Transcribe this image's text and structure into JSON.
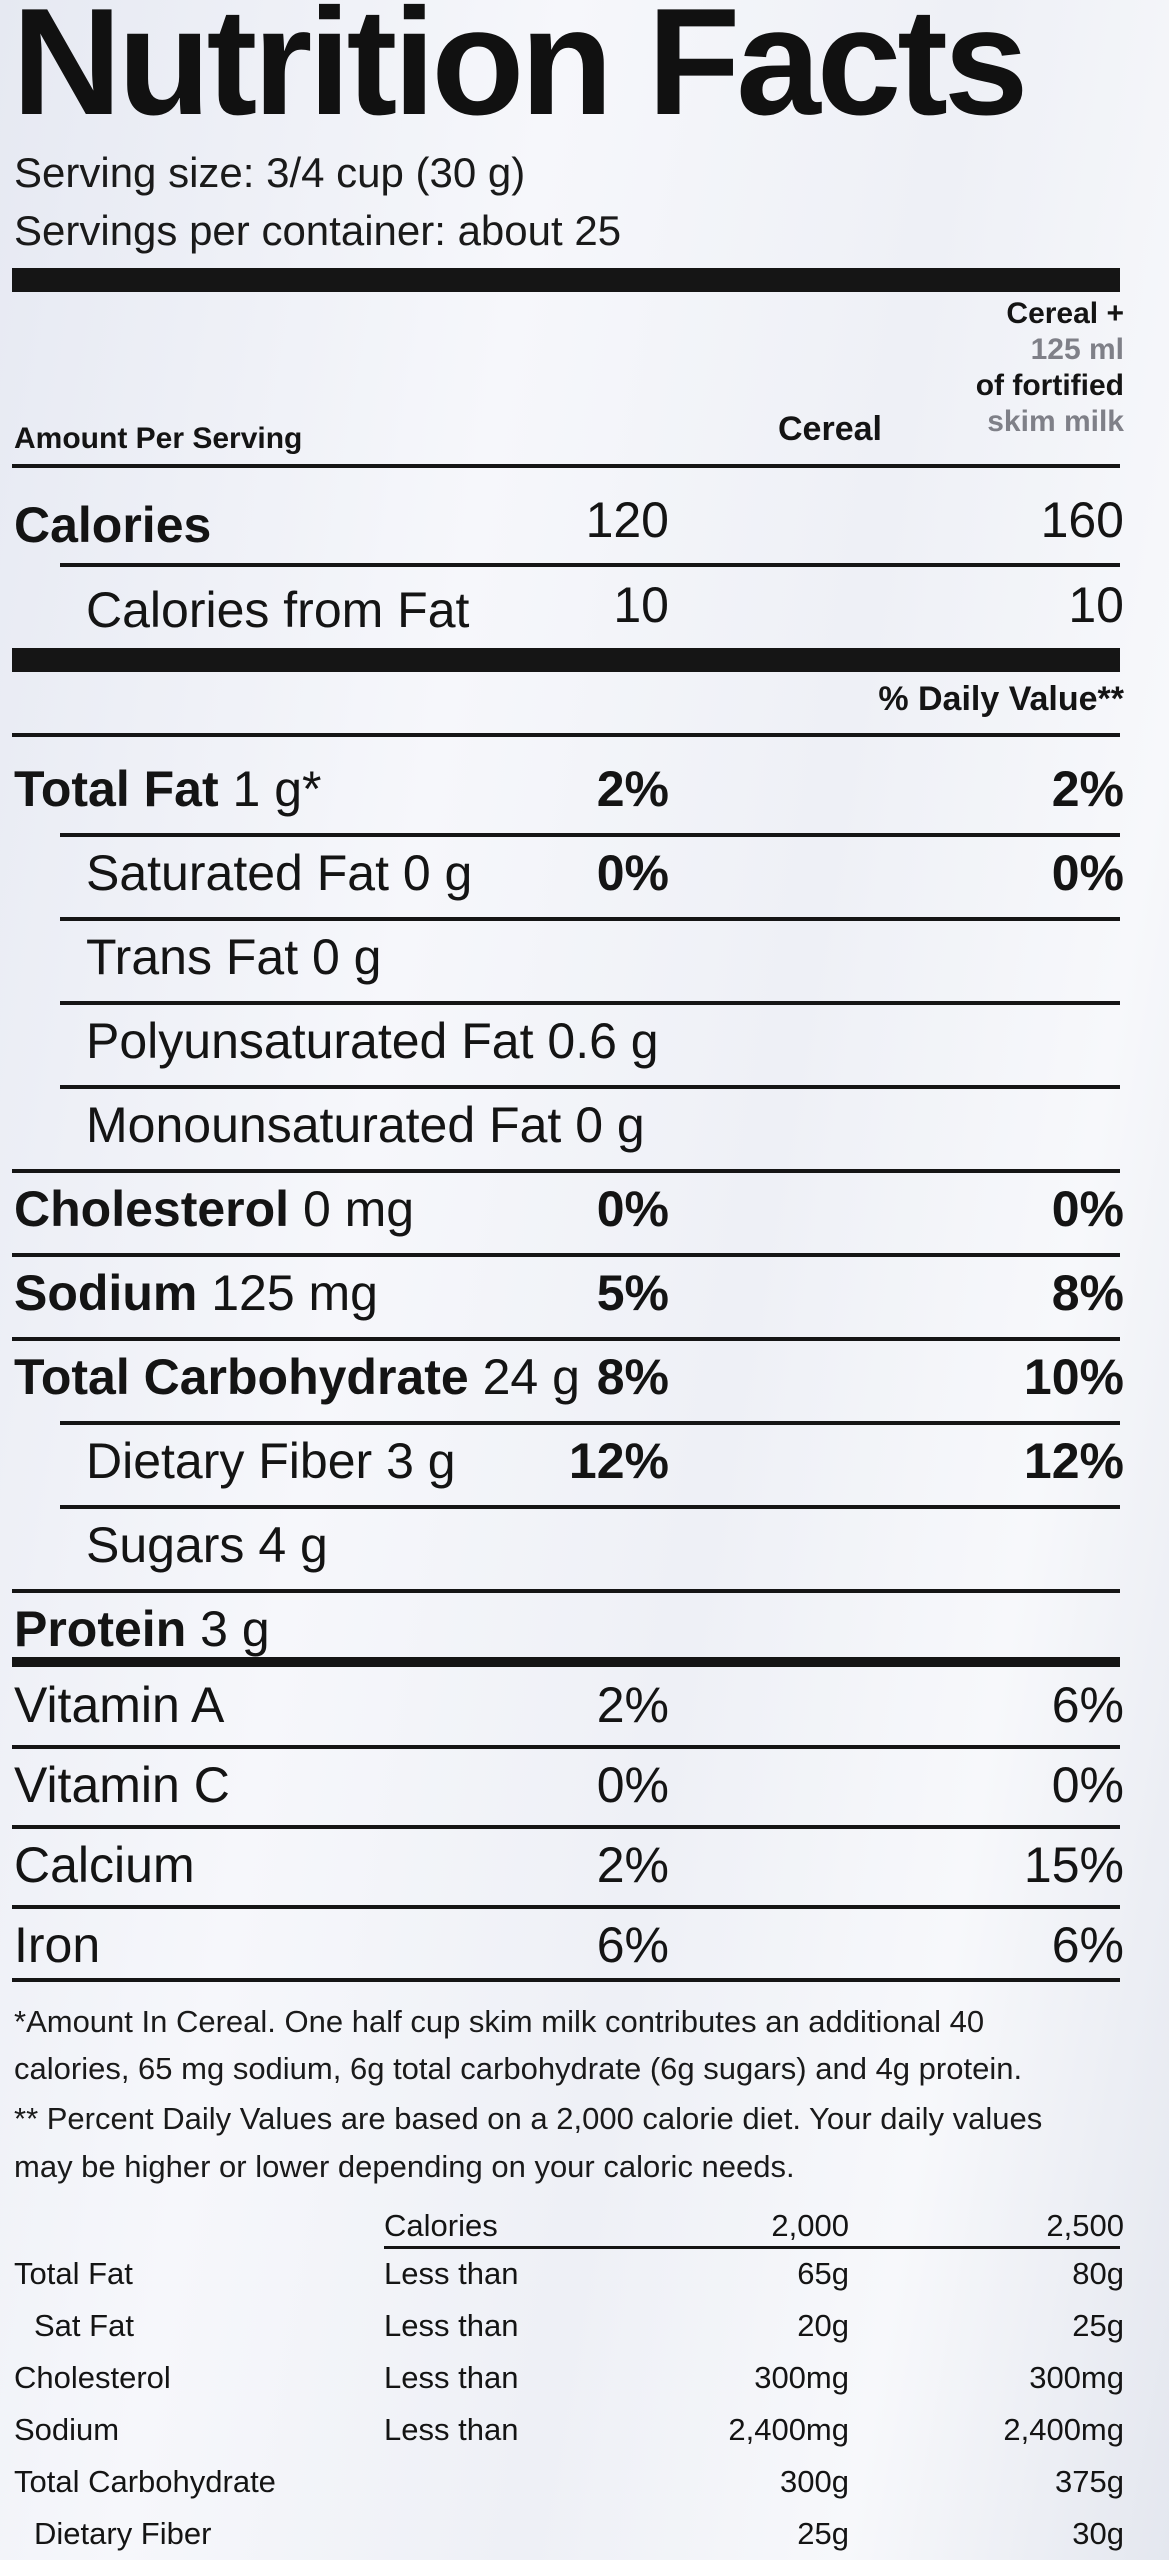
{
  "title": "Nutrition Facts",
  "serving_size": "Serving size: 3/4 cup (30 g)",
  "servings_per_container": "Servings per container: about 25",
  "header": {
    "amount_per_serving": "Amount Per Serving",
    "col1": "Cereal",
    "col2_line1": "Cereal +",
    "col2_line2": "125 ml",
    "col2_line3": "of fortified",
    "col2_line4": "skim milk"
  },
  "calories": {
    "label": "Calories",
    "cereal": "120",
    "with_milk": "160"
  },
  "calories_from_fat": {
    "label": "Calories from Fat",
    "cereal": "10",
    "with_milk": "10"
  },
  "daily_value_header": "% Daily Value**",
  "nutrients": [
    {
      "name": "Total Fat",
      "amount": " 1 g*",
      "cereal": "2%",
      "with_milk": "2%"
    },
    {
      "name": "Saturated Fat",
      "amount": " 0 g",
      "cereal": "0%",
      "with_milk": "0%"
    },
    {
      "name": "Trans Fat",
      "amount": " 0 g",
      "cereal": "",
      "with_milk": ""
    },
    {
      "name": "Polyunsaturated Fat",
      "amount": " 0.6 g",
      "cereal": "",
      "with_milk": ""
    },
    {
      "name": "Monounsaturated Fat",
      "amount": " 0 g",
      "cereal": "",
      "with_milk": ""
    },
    {
      "name": "Cholesterol",
      "amount": " 0 mg",
      "cereal": "0%",
      "with_milk": "0%"
    },
    {
      "name": "Sodium",
      "amount": " 125 mg",
      "cereal": "5%",
      "with_milk": "8%"
    },
    {
      "name": "Total Carbohydrate",
      "amount": " 24 g",
      "cereal": "8%",
      "with_milk": "10%"
    },
    {
      "name": "Dietary Fiber",
      "amount": " 3 g",
      "cereal": "12%",
      "with_milk": "12%"
    },
    {
      "name": "Sugars",
      "amount": " 4 g",
      "cereal": "",
      "with_milk": ""
    },
    {
      "name": "Protein",
      "amount": " 3 g",
      "cereal": "",
      "with_milk": ""
    }
  ],
  "vitamins": [
    {
      "name": "Vitamin A",
      "cereal": "2%",
      "with_milk": "6%"
    },
    {
      "name": "Vitamin C",
      "cereal": "0%",
      "with_milk": "0%"
    },
    {
      "name": "Calcium",
      "cereal": "2%",
      "with_milk": "15%"
    },
    {
      "name": "Iron",
      "cereal": "6%",
      "with_milk": "6%"
    }
  ],
  "footnotes": [
    "*Amount In Cereal. One half cup skim milk contributes an additional 40",
    "calories, 65 mg sodium, 6g total carbohydrate (6g sugars) and 4g protein.",
    "** Percent Daily Values are based on a 2,000 calorie diet. Your daily values",
    "may be higher or lower depending on your caloric needs."
  ],
  "dv_table": {
    "header": {
      "label": "Calories",
      "c1": "2,000",
      "c2": "2,500"
    },
    "rows": [
      {
        "name": "Total Fat",
        "qual": "Less than",
        "c1": "65g",
        "c2": "80g"
      },
      {
        "name": "Sat Fat",
        "qual": "Less than",
        "c1": "20g",
        "c2": "25g"
      },
      {
        "name": "Cholesterol",
        "qual": "Less than",
        "c1": "300mg",
        "c2": "300mg"
      },
      {
        "name": "Sodium",
        "qual": "Less than",
        "c1": "2,400mg",
        "c2": "2,400mg"
      },
      {
        "name": "Total Carbohydrate",
        "qual": "",
        "c1": "300g",
        "c2": "375g"
      },
      {
        "name": "Dietary Fiber",
        "qual": "",
        "c1": "25g",
        "c2": "30g"
      }
    ]
  }
}
